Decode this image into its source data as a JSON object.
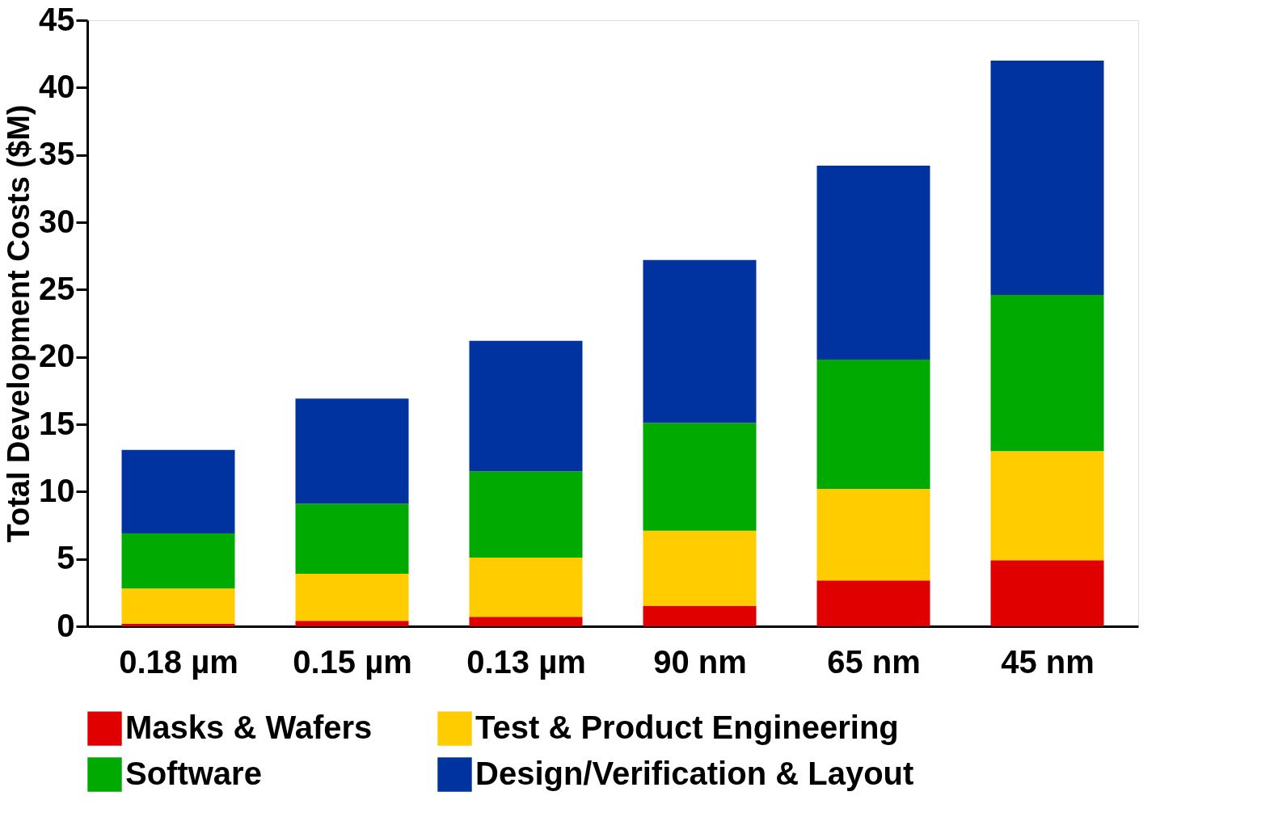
{
  "chart_data": {
    "type": "bar",
    "stacked": true,
    "ylabel": "Total Development Costs ($M)",
    "categories": [
      "0.18 µm",
      "0.15 µm",
      "0.13 µm",
      "90 nm",
      "65 nm",
      "45 nm"
    ],
    "series": [
      {
        "name": "Masks & Wafers",
        "color": "#e00000",
        "values": [
          0.2,
          0.4,
          0.7,
          1.5,
          3.4,
          4.9
        ]
      },
      {
        "name": "Test & Product Engineering",
        "color": "#ffcc00",
        "values": [
          2.6,
          3.5,
          4.4,
          5.6,
          6.8,
          8.1
        ]
      },
      {
        "name": "Software",
        "color": "#00aa00",
        "values": [
          4.1,
          5.2,
          6.4,
          8.0,
          9.6,
          11.6
        ]
      },
      {
        "name": "Design/Verification & Layout",
        "color": "#0033a0",
        "values": [
          6.2,
          7.8,
          9.7,
          12.1,
          14.4,
          17.4
        ]
      }
    ],
    "ylim": [
      0,
      45
    ],
    "yticks": [
      0,
      5,
      10,
      15,
      20,
      25,
      30,
      35,
      40,
      45
    ],
    "grid": false,
    "legend": "bottom"
  }
}
